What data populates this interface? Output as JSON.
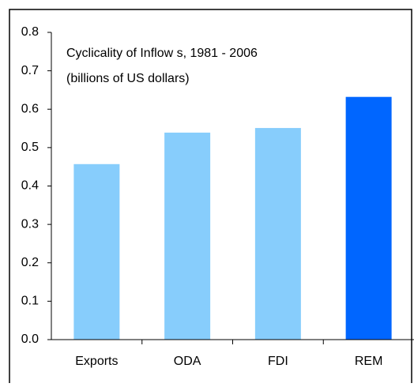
{
  "chart_data": {
    "type": "bar",
    "title": "Cyclicality of Inflow s, 1981 - 2006",
    "subtitle": "(billions of US dollars)",
    "categories": [
      "Exports",
      "ODA",
      "FDI",
      "REM"
    ],
    "values": [
      0.457,
      0.539,
      0.551,
      0.632
    ],
    "colors": [
      "#87cdfc",
      "#87cdfc",
      "#87cdfc",
      "#0066ff"
    ],
    "ylim": [
      0,
      0.8
    ],
    "yticks": [
      {
        "value": 0,
        "label": "0.0"
      },
      0.1,
      0.2,
      0.3,
      0.4,
      0.5,
      0.6,
      0.7,
      0.8
    ],
    "grid": false
  }
}
